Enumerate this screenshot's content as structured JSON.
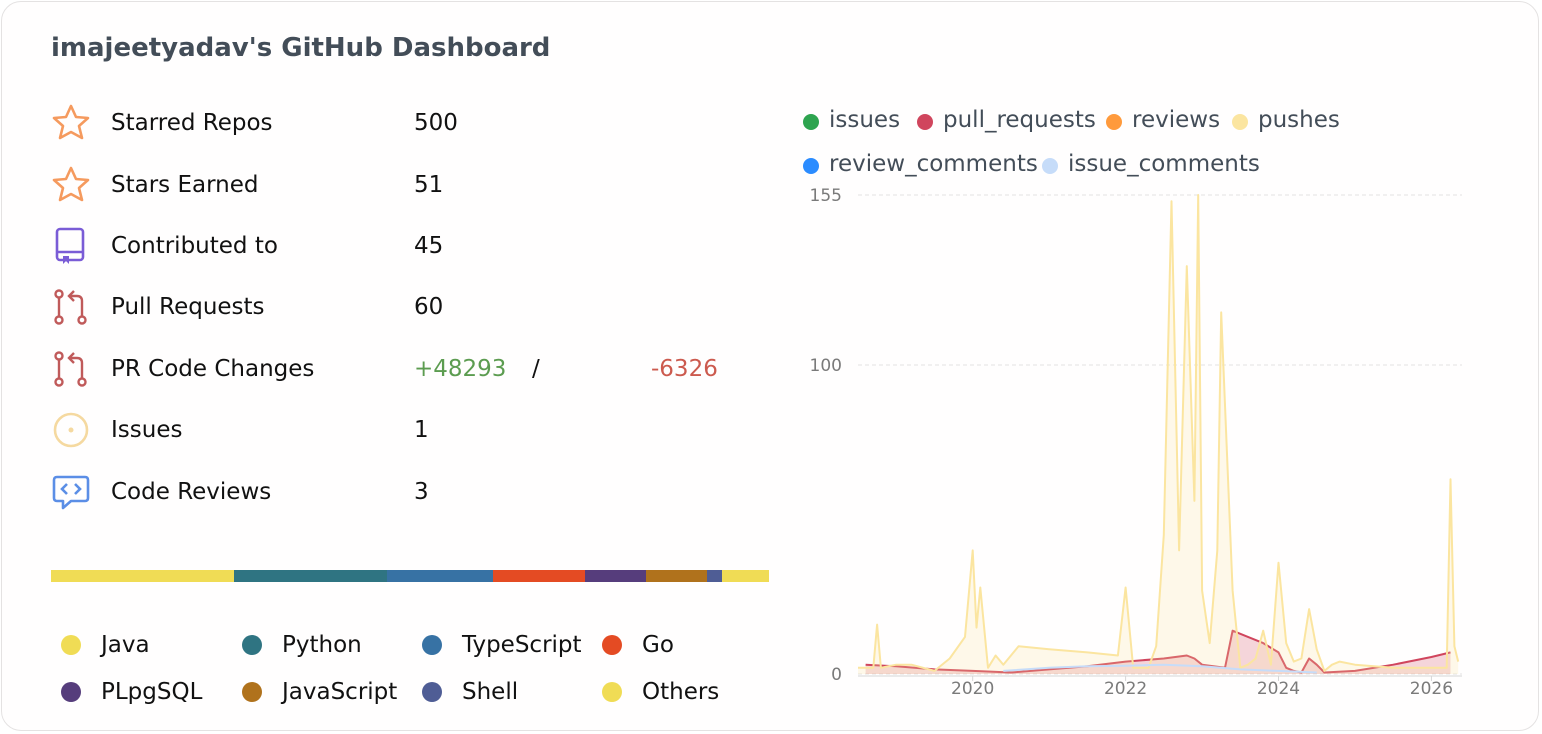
{
  "title": "imajeetyadav's GitHub Dashboard",
  "stats": {
    "starred_repos": {
      "label": "Starred Repos",
      "value": "500",
      "icon": "star-icon"
    },
    "stars_earned": {
      "label": "Stars Earned",
      "value": "51",
      "icon": "star-icon"
    },
    "contributed_to": {
      "label": "Contributed to",
      "value": "45",
      "icon": "repo-icon"
    },
    "pull_requests": {
      "label": "Pull Requests",
      "value": "60",
      "icon": "pull-request-icon"
    },
    "pr_code_changes": {
      "label": "PR Code Changes",
      "additions": "+48293",
      "separator": "/",
      "deletions": "-6326",
      "icon": "pull-request-icon"
    },
    "issues": {
      "label": "Issues",
      "value": "1",
      "icon": "issue-icon"
    },
    "code_reviews": {
      "label": "Code Reviews",
      "value": "3",
      "icon": "code-review-icon"
    }
  },
  "colors": {
    "star": "#f59a5e",
    "repo": "#7a5cd6",
    "pull_request": "#c05a5a",
    "issue": "#f5d9a0",
    "code_review": "#5b8ee6",
    "additions": "#5c9c50",
    "deletions": "#cc5a4e"
  },
  "languages": [
    {
      "name": "Java",
      "color": "#f0dc55",
      "share": 0.255
    },
    {
      "name": "Python",
      "color": "#2f7482",
      "share": 0.213
    },
    {
      "name": "TypeScript",
      "color": "#3772a4",
      "share": 0.148
    },
    {
      "name": "Go",
      "color": "#e44b23",
      "share": 0.128
    },
    {
      "name": "PLpgSQL",
      "color": "#563d7c",
      "share": 0.084
    },
    {
      "name": "JavaScript",
      "color": "#b0721c",
      "share": 0.085
    },
    {
      "name": "Shell",
      "color": "#4f5d95",
      "share": 0.022
    },
    {
      "name": "Others",
      "color": "#f0dc55",
      "share": 0.065
    }
  ],
  "chart_data": {
    "type": "area",
    "ylim": [
      0,
      155
    ],
    "yticks": [
      "0",
      "100",
      "155"
    ],
    "xticks": [
      "2020",
      "2022",
      "2024",
      "2026"
    ],
    "xlim": [
      2018.5,
      2026.4
    ],
    "grid": true,
    "legend_position": "top",
    "series": [
      {
        "name": "issues",
        "color": "#2ea44f",
        "points": []
      },
      {
        "name": "pull_requests",
        "color": "#d0455d",
        "fill": true,
        "points": [
          [
            2018.6,
            3
          ],
          [
            2019.0,
            2.5
          ],
          [
            2019.5,
            1.5
          ],
          [
            2020.0,
            1
          ],
          [
            2020.5,
            0.5
          ],
          [
            2021.0,
            1.5
          ],
          [
            2021.5,
            2.5
          ],
          [
            2022.0,
            4
          ],
          [
            2022.5,
            5
          ],
          [
            2022.8,
            6
          ],
          [
            2022.9,
            5
          ],
          [
            2023.0,
            3
          ],
          [
            2023.3,
            2
          ],
          [
            2023.4,
            14
          ],
          [
            2023.8,
            10
          ],
          [
            2024.0,
            7
          ],
          [
            2024.1,
            2
          ],
          [
            2024.2,
            1
          ],
          [
            2024.3,
            0.5
          ],
          [
            2024.4,
            5
          ],
          [
            2024.5,
            3
          ],
          [
            2024.6,
            0.5
          ],
          [
            2025.0,
            1
          ],
          [
            2025.5,
            3
          ],
          [
            2026.0,
            5.5
          ],
          [
            2026.25,
            7
          ]
        ]
      },
      {
        "name": "reviews",
        "color": "#ff9a3c",
        "points": []
      },
      {
        "name": "pushes",
        "color": "#fbe5a0",
        "fill": true,
        "points": [
          [
            2018.5,
            2
          ],
          [
            2018.7,
            2
          ],
          [
            2018.75,
            16
          ],
          [
            2018.8,
            2
          ],
          [
            2019.0,
            3
          ],
          [
            2019.2,
            3
          ],
          [
            2019.5,
            1
          ],
          [
            2019.7,
            5
          ],
          [
            2019.9,
            12
          ],
          [
            2020.0,
            40
          ],
          [
            2020.05,
            15
          ],
          [
            2020.1,
            28
          ],
          [
            2020.2,
            2
          ],
          [
            2020.3,
            6
          ],
          [
            2020.4,
            3
          ],
          [
            2020.6,
            9
          ],
          [
            2021.0,
            8
          ],
          [
            2021.5,
            7
          ],
          [
            2021.9,
            6
          ],
          [
            2022.0,
            28
          ],
          [
            2022.1,
            2
          ],
          [
            2022.3,
            2
          ],
          [
            2022.4,
            9
          ],
          [
            2022.5,
            45
          ],
          [
            2022.6,
            153
          ],
          [
            2022.7,
            40
          ],
          [
            2022.8,
            132
          ],
          [
            2022.9,
            56
          ],
          [
            2022.95,
            155
          ],
          [
            2023.0,
            27
          ],
          [
            2023.1,
            10
          ],
          [
            2023.2,
            40
          ],
          [
            2023.25,
            117
          ],
          [
            2023.4,
            27
          ],
          [
            2023.5,
            2
          ],
          [
            2023.6,
            3
          ],
          [
            2023.7,
            5
          ],
          [
            2023.8,
            14
          ],
          [
            2023.9,
            3
          ],
          [
            2024.0,
            36
          ],
          [
            2024.1,
            10
          ],
          [
            2024.2,
            4
          ],
          [
            2024.3,
            5
          ],
          [
            2024.4,
            21
          ],
          [
            2024.5,
            8
          ],
          [
            2024.6,
            1
          ],
          [
            2024.7,
            3
          ],
          [
            2024.8,
            4
          ],
          [
            2025.0,
            3
          ],
          [
            2025.5,
            2
          ],
          [
            2026.0,
            2
          ],
          [
            2026.2,
            2
          ],
          [
            2026.25,
            63
          ],
          [
            2026.3,
            9
          ],
          [
            2026.35,
            4
          ]
        ]
      },
      {
        "name": "review_comments",
        "color": "#2b8cff",
        "points": []
      },
      {
        "name": "issue_comments",
        "color": "#c6dcf9",
        "points": [
          [
            2020.4,
            1
          ],
          [
            2021.0,
            2
          ],
          [
            2021.5,
            2.5
          ],
          [
            2022.0,
            2.7
          ],
          [
            2022.5,
            3
          ],
          [
            2023.0,
            2.5
          ],
          [
            2023.5,
            1.5
          ],
          [
            2024.0,
            1
          ],
          [
            2024.5,
            0.5
          ]
        ]
      }
    ]
  }
}
